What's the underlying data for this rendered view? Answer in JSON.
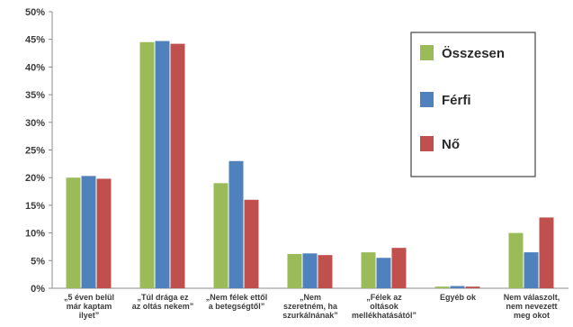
{
  "chart_data": {
    "type": "bar",
    "title": "",
    "xlabel": "",
    "ylabel": "",
    "ylim": [
      0,
      50
    ],
    "y_ticks": [
      "0%",
      "5%",
      "10%",
      "15%",
      "20%",
      "25%",
      "30%",
      "35%",
      "40%",
      "45%",
      "50%"
    ],
    "y_tick_values": [
      0,
      5,
      10,
      15,
      20,
      25,
      30,
      35,
      40,
      45,
      50
    ],
    "grid": false,
    "legend_position": "top-right",
    "categories": [
      [
        "„5 éven belül",
        "már kaptam",
        "ilyet”"
      ],
      [
        "„Túl drága ez",
        "az oltás nekem”"
      ],
      [
        "„Nem félek ettől",
        "a betegségtől”"
      ],
      [
        "„Nem",
        "szeretném, ha",
        "szurkálnának”"
      ],
      [
        "„Félek az",
        "oltások",
        "mellékhatásától”"
      ],
      [
        "Egyéb ok"
      ],
      [
        "Nem válaszolt,",
        "nem nevezett",
        "meg okot"
      ]
    ],
    "series": [
      {
        "name": "Összesen",
        "color": "#9bbb59",
        "values": [
          20.0,
          44.5,
          19.0,
          6.2,
          6.5,
          0.3,
          10.0
        ]
      },
      {
        "name": "Férfi",
        "color": "#4f81bd",
        "values": [
          20.3,
          44.7,
          23.0,
          6.3,
          5.5,
          0.4,
          6.5
        ]
      },
      {
        "name": "Nő",
        "color": "#c0504d",
        "values": [
          19.8,
          44.2,
          16.0,
          6.0,
          7.3,
          0.3,
          12.8
        ]
      }
    ]
  }
}
